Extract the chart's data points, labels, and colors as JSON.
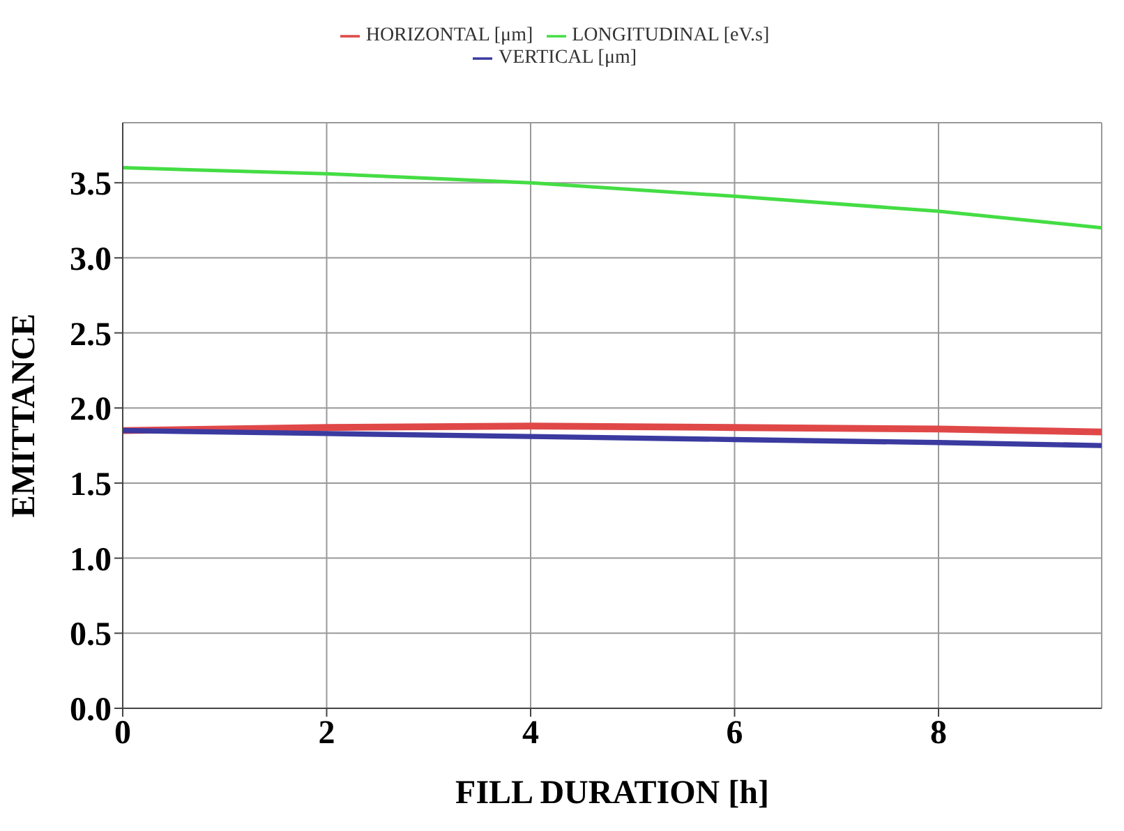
{
  "chart_data": {
    "type": "line",
    "xlabel": "FILL DURATION [h]",
    "ylabel": "EMITTANCE",
    "x": [
      0,
      2,
      4,
      6,
      8,
      9.6
    ],
    "series": [
      {
        "name": "HORIZONTAL [μm]",
        "color": "#e04848",
        "values": [
          1.85,
          1.87,
          1.88,
          1.87,
          1.86,
          1.84
        ]
      },
      {
        "name": "VERTICAL [μm]",
        "color": "#3a3aa0",
        "values": [
          1.85,
          1.83,
          1.81,
          1.79,
          1.77,
          1.75
        ]
      },
      {
        "name": "LONGITUDINAL [eV.s]",
        "color": "#44dd44",
        "values": [
          3.6,
          3.56,
          3.5,
          3.41,
          3.31,
          3.2
        ]
      }
    ],
    "xlim": [
      0,
      9.6
    ],
    "xticks": [
      0,
      2,
      4,
      6,
      8
    ],
    "ylim": [
      0,
      3.9
    ],
    "yticks": [
      {
        "value": 0,
        "label": "0.0"
      },
      0.5,
      {
        "value": 1,
        "label": "1.0"
      },
      1.5,
      {
        "value": 2,
        "label": "2.0"
      },
      2.5,
      {
        "value": 3,
        "label": "3.0"
      },
      3.5
    ],
    "grid": true,
    "legend": "top",
    "marker": "none",
    "line_style": "solid"
  }
}
